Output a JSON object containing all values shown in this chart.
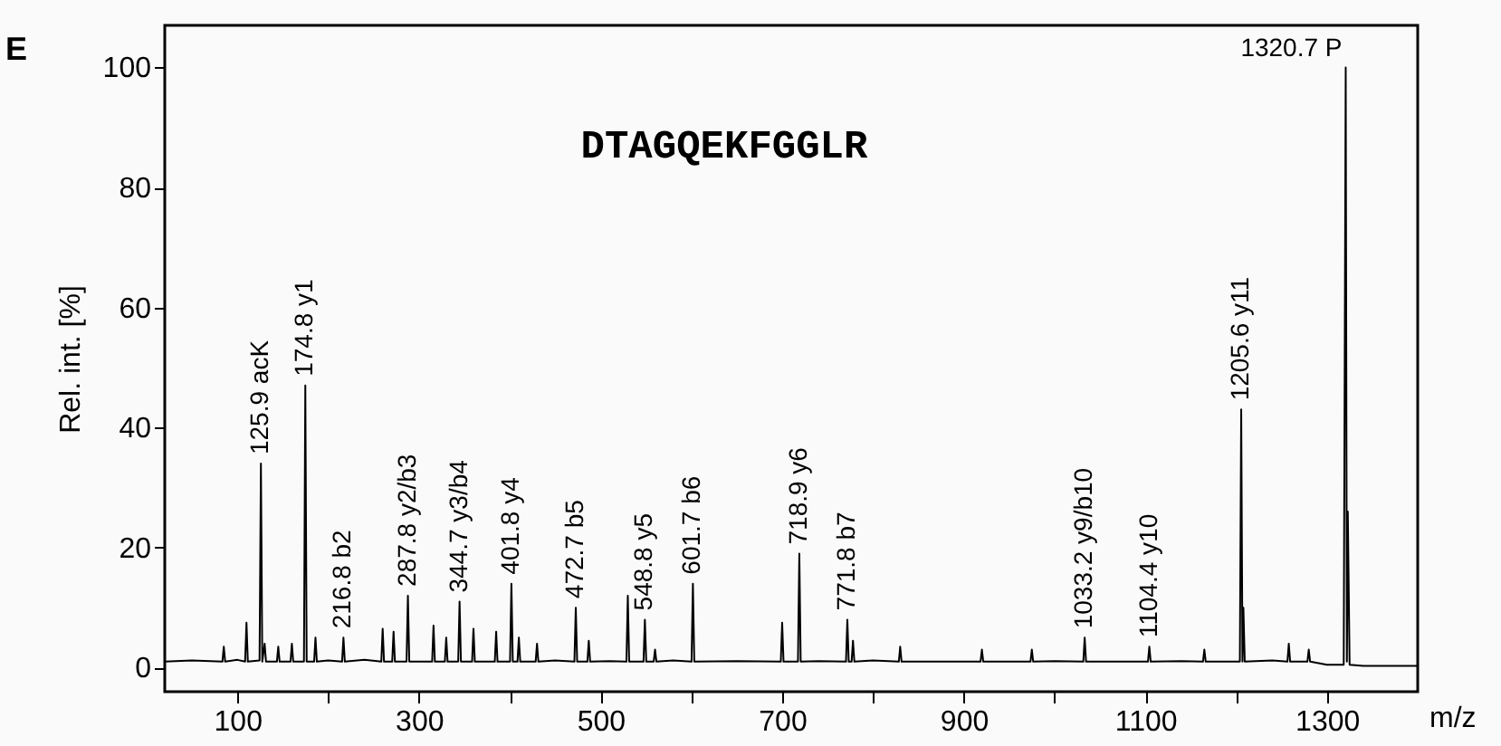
{
  "chart_data": {
    "type": "line",
    "title": "DTAGQEKFGGLR",
    "xlabel": "m/z",
    "ylabel": "Rel. int. [%]",
    "x": [
      20,
      50,
      83.5,
      85,
      86.5,
      100,
      108.5,
      110,
      111.5,
      124.4,
      125.9,
      127.4,
      130,
      131.5,
      143.5,
      145,
      146.5,
      158.5,
      160,
      161.5,
      173.3,
      174.8,
      176.3,
      184.5,
      186,
      187.5,
      200,
      215.3,
      216.8,
      218.3,
      240,
      258.5,
      260,
      261.5,
      270.5,
      272,
      273.5,
      286.3,
      287.8,
      289.3,
      314.5,
      316,
      317.5,
      328.5,
      330,
      331.5,
      343.2,
      344.7,
      346.2,
      358.5,
      360,
      361.5,
      383.5,
      385,
      386.5,
      400.3,
      401.8,
      403.3,
      408.5,
      410,
      411.5,
      428.5,
      430,
      431.5,
      450,
      471.2,
      472.7,
      474.2,
      485.5,
      487,
      488.5,
      510,
      528.5,
      530,
      531.5,
      547.3,
      548.8,
      550.3,
      558.5,
      560,
      561.5,
      580,
      600.2,
      601.7,
      603.2,
      650,
      698.5,
      700,
      701.5,
      717.4,
      718.9,
      720.4,
      740,
      770.3,
      771.8,
      773.3,
      776.5,
      778,
      779.5,
      800,
      828.5,
      830,
      831.5,
      870,
      918.5,
      920,
      921.5,
      973.5,
      975,
      976.5,
      1000,
      1031.7,
      1033.2,
      1034.7,
      1070,
      1102.9,
      1104.4,
      1105.9,
      1140,
      1163.5,
      1165,
      1166.5,
      1190,
      1204.1,
      1205.6,
      1207,
      1208,
      1209.5,
      1240,
      1256.5,
      1258,
      1259.5,
      1278.5,
      1280,
      1281.5,
      1300,
      1318.5,
      1320.7,
      1322,
      1323,
      1325,
      1340,
      1370,
      1400
    ],
    "series": [
      {
        "color": "#000000",
        "values": [
          1,
          1.2,
          1,
          3.5,
          1,
          1.3,
          1,
          7.5,
          1,
          1.2,
          34,
          1,
          4,
          1,
          1,
          3.5,
          1,
          1,
          4,
          1,
          1,
          47,
          1,
          1,
          5,
          1,
          1.2,
          1,
          5,
          1,
          1.3,
          1,
          6.5,
          1,
          1,
          6,
          1,
          1,
          12,
          1,
          1,
          7,
          1,
          1,
          5,
          1,
          1,
          11,
          1,
          1,
          6.5,
          1,
          1,
          6,
          1,
          1,
          14,
          1,
          1,
          5,
          1,
          1,
          4,
          1,
          1.2,
          1,
          10,
          1,
          1,
          4.5,
          1,
          1.1,
          1,
          12,
          1,
          1,
          8,
          1,
          1,
          3,
          1,
          1.2,
          1,
          14,
          1,
          1.1,
          1,
          7.5,
          1,
          1,
          19,
          1,
          1.1,
          1,
          8,
          1,
          1,
          4.5,
          1,
          1.2,
          1,
          3.5,
          1,
          1,
          1,
          3,
          1,
          1,
          3,
          1,
          1.1,
          1,
          5,
          1,
          1,
          1,
          3.5,
          1,
          1.1,
          1,
          3,
          1,
          1,
          1,
          43,
          1,
          10,
          1,
          1.2,
          1,
          4,
          1,
          1,
          3,
          1,
          0.5,
          0.5,
          100,
          1,
          26,
          0.5,
          0.3,
          0.3,
          0.3
        ]
      }
    ],
    "xlim": [
      20,
      1400
    ],
    "ylim": [
      -4,
      107
    ],
    "xticks": [
      100,
      {
        "value": 200,
        "label": null
      },
      300,
      {
        "value": 400,
        "label": null
      },
      500,
      {
        "value": 600,
        "label": null
      },
      700,
      {
        "value": 800,
        "label": null
      },
      900,
      {
        "value": 1000,
        "label": null
      },
      1100,
      {
        "value": 1200,
        "label": null
      },
      1300
    ],
    "yticks": [
      0,
      20,
      40,
      60,
      80,
      100
    ],
    "annotations": [
      "E",
      {
        "text": "125.9 acK",
        "x": 125.9,
        "y": 34
      },
      {
        "text": "174.8 y1",
        "x": 174.8,
        "y": 47
      },
      {
        "text": "216.8 b2",
        "x": 216.8,
        "y": 5
      },
      {
        "text": "287.8 y2/b3",
        "x": 287.8,
        "y": 12
      },
      {
        "text": "344.7 y3/b4",
        "x": 344.7,
        "y": 11
      },
      {
        "text": "401.8 y4",
        "x": 401.8,
        "y": 14
      },
      {
        "text": "472.7 b5",
        "x": 472.7,
        "y": 10
      },
      {
        "text": "548.8 y5",
        "x": 548.8,
        "y": 8
      },
      {
        "text": "601.7 b6",
        "x": 601.7,
        "y": 14
      },
      {
        "text": "718.9 y6",
        "x": 718.9,
        "y": 19
      },
      {
        "text": "771.8 b7",
        "x": 771.8,
        "y": 8
      },
      {
        "text": "1033.2 y9/b10",
        "x": 1033.2,
        "y": 5
      },
      {
        "text": "1104.4 y10",
        "x": 1104.4,
        "y": 3.5
      },
      {
        "text": "1205.6 y11",
        "x": 1205.6,
        "y": 43
      },
      {
        "text": "1320.7 P",
        "x": 1320.7,
        "y": 100
      }
    ],
    "grid": false
  }
}
